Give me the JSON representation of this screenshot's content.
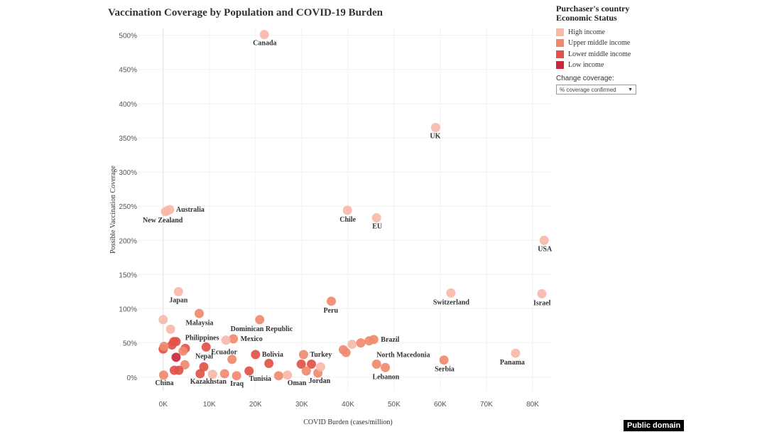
{
  "chart_data": {
    "type": "scatter",
    "title": "Vaccination Coverage by Population and COVID-19 Burden",
    "xlabel": "COVID Burden (cases/million)",
    "ylabel": "Possible Vaccination Coverage",
    "xlim": [
      -5500,
      84000
    ],
    "ylim": [
      -20,
      510
    ],
    "x_ticks": [
      {
        "v": 0,
        "label": "0K"
      },
      {
        "v": 10000,
        "label": "10K"
      },
      {
        "v": 20000,
        "label": "20K"
      },
      {
        "v": 30000,
        "label": "30K"
      },
      {
        "v": 40000,
        "label": "40K"
      },
      {
        "v": 50000,
        "label": "50K"
      },
      {
        "v": 60000,
        "label": "60K"
      },
      {
        "v": 70000,
        "label": "70K"
      },
      {
        "v": 80000,
        "label": "80K"
      }
    ],
    "y_ticks": [
      {
        "v": 0,
        "label": "0%"
      },
      {
        "v": 50,
        "label": "50%"
      },
      {
        "v": 100,
        "label": "100%"
      },
      {
        "v": 150,
        "label": "150%"
      },
      {
        "v": 200,
        "label": "200%"
      },
      {
        "v": 250,
        "label": "250%"
      },
      {
        "v": 300,
        "label": "300%"
      },
      {
        "v": 350,
        "label": "350%"
      },
      {
        "v": 400,
        "label": "400%"
      },
      {
        "v": 450,
        "label": "450%"
      },
      {
        "v": 500,
        "label": "500%"
      }
    ],
    "grid": true,
    "legend": {
      "title": [
        "Purchaser's country",
        "Economic  Status"
      ],
      "position": "top-right",
      "entries": [
        {
          "key": "high",
          "label": "High income",
          "color": "#f7b9a8"
        },
        {
          "key": "upper",
          "label": "Upper middle income",
          "color": "#ef8a6e"
        },
        {
          "key": "lower",
          "label": "Lower middle income",
          "color": "#e15248"
        },
        {
          "key": "low",
          "label": "Low income",
          "color": "#c8283e"
        }
      ]
    },
    "points": [
      {
        "label": "Canada",
        "x": 21900,
        "y": 501,
        "group": "high",
        "label_dx": -16,
        "label_dy": 15
      },
      {
        "label": "UK",
        "x": 59000,
        "y": 365,
        "group": "high",
        "label_dx": -8,
        "label_dy": 15
      },
      {
        "label": "Australia",
        "x": 1400,
        "y": 245,
        "group": "high",
        "label_dx": 9,
        "label_dy": 3
      },
      {
        "label": "",
        "x": 500,
        "y": 242,
        "group": "high"
      },
      {
        "label": "New Zealand",
        "x": 800,
        "y": 243,
        "group": "high",
        "label_dx": -34,
        "label_dy": 16
      },
      {
        "label": "Chile",
        "x": 39900,
        "y": 244,
        "group": "high",
        "label_dx": -11,
        "label_dy": 16
      },
      {
        "label": "EU",
        "x": 46200,
        "y": 233,
        "group": "high",
        "label_dx": -6,
        "label_dy": 15
      },
      {
        "label": "USA",
        "x": 82500,
        "y": 200,
        "group": "high",
        "label_dx": -9,
        "label_dy": 15
      },
      {
        "label": "Japan",
        "x": 3300,
        "y": 125,
        "group": "high",
        "label_dx": -13,
        "label_dy": 15
      },
      {
        "label": "Switzerland",
        "x": 62300,
        "y": 123,
        "group": "high",
        "label_dx": -25,
        "label_dy": 16
      },
      {
        "label": "Israel",
        "x": 82000,
        "y": 122,
        "group": "high",
        "label_dx": -12,
        "label_dy": 16
      },
      {
        "label": "Peru",
        "x": 36400,
        "y": 111,
        "group": "upper",
        "label_dx": -11,
        "label_dy": 16
      },
      {
        "label": "Malaysia",
        "x": 7800,
        "y": 93,
        "group": "upper",
        "label_dx": -19,
        "label_dy": 16
      },
      {
        "label": "Dominican Republic",
        "x": 20900,
        "y": 84,
        "group": "upper",
        "label_dx": -41,
        "label_dy": 16
      },
      {
        "label": "",
        "x": 0,
        "y": 84,
        "group": "high"
      },
      {
        "label": "",
        "x": 1600,
        "y": 70,
        "group": "high"
      },
      {
        "label": "Mexico",
        "x": 15200,
        "y": 56,
        "group": "upper",
        "label_dx": 10,
        "label_dy": 3
      },
      {
        "label": "",
        "x": 13600,
        "y": 54,
        "group": "high"
      },
      {
        "label": "Philippines",
        "x": 2300,
        "y": 52,
        "group": "lower",
        "label_dx": 16,
        "label_dy": -2
      },
      {
        "label": "",
        "x": 1900,
        "y": 47,
        "group": "lower"
      },
      {
        "label": "",
        "x": 2800,
        "y": 52,
        "group": "lower"
      },
      {
        "label": "",
        "x": 0,
        "y": 41,
        "group": "lower"
      },
      {
        "label": "",
        "x": 200,
        "y": 45,
        "group": "upper"
      },
      {
        "label": "",
        "x": 4800,
        "y": 42,
        "group": "lower"
      },
      {
        "label": "",
        "x": 4300,
        "y": 38,
        "group": "upper"
      },
      {
        "label": "Ecuador",
        "x": 9300,
        "y": 44,
        "group": "lower",
        "label_dx": 7,
        "label_dy": 10
      },
      {
        "label": "",
        "x": 2800,
        "y": 29,
        "group": "low"
      },
      {
        "label": "Nepal",
        "x": 8800,
        "y": 15,
        "group": "lower",
        "label_dx": -12,
        "label_dy": -12
      },
      {
        "label": "",
        "x": 4700,
        "y": 18,
        "group": "upper"
      },
      {
        "label": "",
        "x": 2400,
        "y": 10,
        "group": "lower"
      },
      {
        "label": "",
        "x": 3400,
        "y": 10,
        "group": "lower"
      },
      {
        "label": "China",
        "x": 100,
        "y": 3,
        "group": "upper",
        "label_dx": -12,
        "label_dy": 14
      },
      {
        "label": "Kazakhstan",
        "x": 8000,
        "y": 5,
        "group": "lower",
        "label_dx": -14,
        "label_dy": 14
      },
      {
        "label": "",
        "x": 10700,
        "y": 4,
        "group": "high"
      },
      {
        "label": "",
        "x": 13300,
        "y": 5,
        "group": "upper"
      },
      {
        "label": "Iraq",
        "x": 15900,
        "y": 2,
        "group": "upper",
        "label_dx": -9,
        "label_dy": 14
      },
      {
        "label": "",
        "x": 14900,
        "y": 26,
        "group": "upper"
      },
      {
        "label": "Tunisia",
        "x": 18600,
        "y": 9,
        "group": "lower",
        "label_dx": 0,
        "label_dy": 14
      },
      {
        "label": "Bolivia",
        "x": 20000,
        "y": 33,
        "group": "lower",
        "label_dx": 9,
        "label_dy": 3
      },
      {
        "label": "",
        "x": 22900,
        "y": 20,
        "group": "lower"
      },
      {
        "label": "",
        "x": 25000,
        "y": 2,
        "group": "upper"
      },
      {
        "label": "Oman",
        "x": 26900,
        "y": 3,
        "group": "high",
        "label_dx": 0,
        "label_dy": 14
      },
      {
        "label": "Turkey",
        "x": 30400,
        "y": 33,
        "group": "upper",
        "label_dx": 9,
        "label_dy": 3
      },
      {
        "label": "",
        "x": 29900,
        "y": 19,
        "group": "lower"
      },
      {
        "label": "",
        "x": 32100,
        "y": 19,
        "group": "lower"
      },
      {
        "label": "",
        "x": 31000,
        "y": 9,
        "group": "upper"
      },
      {
        "label": "Jordan",
        "x": 33500,
        "y": 6,
        "group": "upper",
        "label_dx": -13,
        "label_dy": 14
      },
      {
        "label": "",
        "x": 34100,
        "y": 15,
        "group": "high"
      },
      {
        "label": "",
        "x": 39000,
        "y": 40,
        "group": "upper"
      },
      {
        "label": "",
        "x": 39600,
        "y": 36,
        "group": "upper"
      },
      {
        "label": "",
        "x": 40900,
        "y": 48,
        "group": "high"
      },
      {
        "label": "",
        "x": 42800,
        "y": 50,
        "group": "upper"
      },
      {
        "label": "",
        "x": 44600,
        "y": 53,
        "group": "upper"
      },
      {
        "label": "Brazil",
        "x": 45600,
        "y": 55,
        "group": "upper",
        "label_dx": 10,
        "label_dy": 3
      },
      {
        "label": "North Macedonia",
        "x": 46200,
        "y": 19,
        "group": "upper",
        "label_dx": 0,
        "label_dy": -10
      },
      {
        "label": "Lebanon",
        "x": 48100,
        "y": 14,
        "group": "upper",
        "label_dx": -18,
        "label_dy": 16
      },
      {
        "label": "Serbia",
        "x": 60800,
        "y": 25,
        "group": "upper",
        "label_dx": -13,
        "label_dy": 16
      },
      {
        "label": "Panama",
        "x": 76300,
        "y": 35,
        "group": "high",
        "label_dx": -22,
        "label_dy": 16
      }
    ]
  },
  "controls": {
    "change_coverage_label": "Change coverage:",
    "change_coverage_value": "% coverage confirmed"
  },
  "badge": "Public domain"
}
